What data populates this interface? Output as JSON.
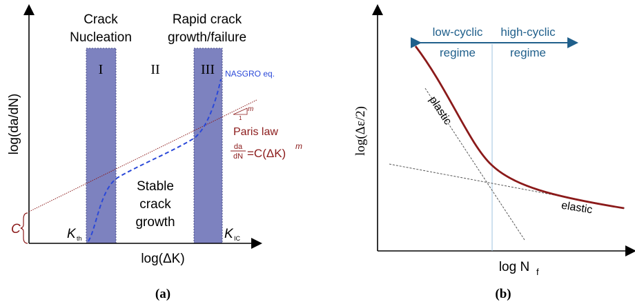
{
  "panel_a": {
    "caption": "(a)",
    "y_axis_label": "log(da/dN)",
    "x_axis_label": "log(ΔK)",
    "regions": [
      {
        "title_line1": "Crack",
        "title_line2": "Nucleation",
        "roman": "I"
      },
      {
        "roman": "II"
      },
      {
        "title_line1": "Rapid crack",
        "title_line2": "growth/failure",
        "roman": "III"
      }
    ],
    "middle_text": [
      "Stable",
      "crack",
      "growth"
    ],
    "curve_label": "NASGRO eq.",
    "paris_label": "Paris law",
    "paris_equation": "=C(ΔK)",
    "paris_frac_top": "da",
    "paris_frac_bottom": "dN",
    "paris_exponent": "m",
    "slope_m": "m",
    "slope_run": "1",
    "intercept_label": "C",
    "k_th": "K",
    "k_th_sub": "th",
    "k_ic": "K",
    "k_ic_sub": "IC",
    "colors": {
      "band": "#7d82bf",
      "nasgro": "#2a48d8",
      "paris": "#8b1a1a",
      "axis": "#000000"
    }
  },
  "panel_b": {
    "caption": "(b)",
    "y_axis_label": "log(Δε/2)",
    "x_axis_label": "log N",
    "x_axis_sub": "f",
    "low_cyclic": [
      "low-cyclic",
      "regime"
    ],
    "high_cyclic": [
      "high-cyclic",
      "regime"
    ],
    "plastic_label": "plastic",
    "elastic_label": "elastic",
    "colors": {
      "curve": "#8b1a1a",
      "arrow": "#1f5f8b",
      "divider": "#9ec3df",
      "dashed": "#555555"
    }
  }
}
